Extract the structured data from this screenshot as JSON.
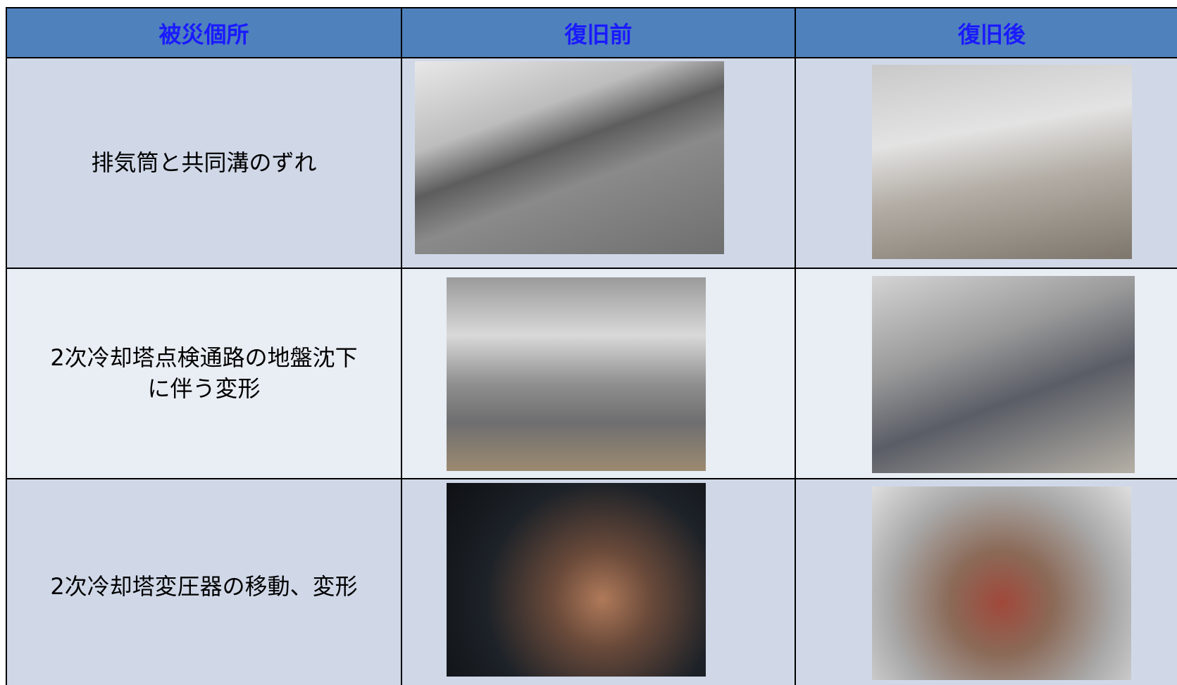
{
  "table": {
    "header": [
      "被災個所",
      "復旧前",
      "復旧後"
    ],
    "rows": [
      {
        "location": "排気筒と共同溝のずれ"
      },
      {
        "location": "2次冷却塔点検通路の地盤沈下\nに伴う変形"
      },
      {
        "location": "2次冷却塔変圧器の移動、変形"
      }
    ]
  }
}
